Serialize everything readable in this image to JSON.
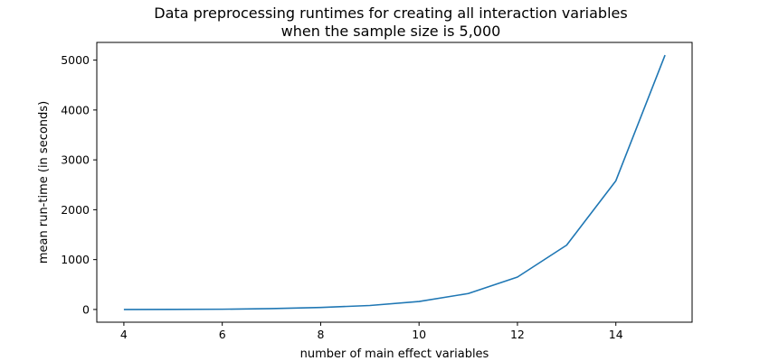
{
  "chart_data": {
    "type": "line",
    "title_line1": "Data preprocessing runtimes for creating all interaction variables",
    "title_line2": "when the sample size is 5,000",
    "xlabel": "number of main effect variables",
    "ylabel": "mean run-time (in seconds)",
    "xlim": [
      3.45,
      15.55
    ],
    "ylim": [
      -255,
      5355
    ],
    "xticks": [
      4,
      6,
      8,
      10,
      12,
      14
    ],
    "yticks": [
      0,
      1000,
      2000,
      3000,
      4000,
      5000
    ],
    "grid": false,
    "series": [
      {
        "color": "#1f77b4",
        "x": [
          4,
          5,
          6,
          7,
          8,
          9,
          10,
          11,
          12,
          13,
          14,
          15
        ],
        "y": [
          0,
          2,
          5,
          18,
          40,
          80,
          160,
          320,
          650,
          1290,
          2580,
          5100
        ]
      }
    ]
  }
}
